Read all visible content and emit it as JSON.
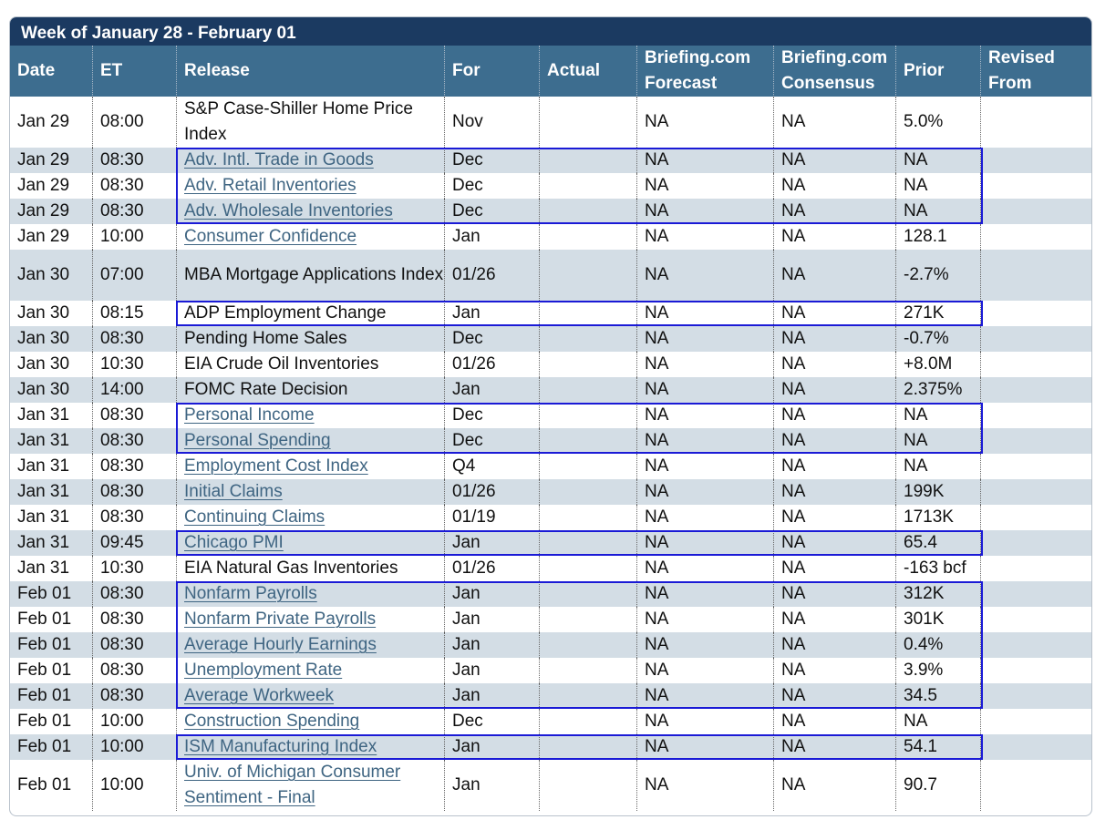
{
  "title": "Week of January 28 - February 01",
  "headers": [
    {
      "key": "date",
      "label": "Date"
    },
    {
      "key": "et",
      "label": "ET"
    },
    {
      "key": "release",
      "label": "Release"
    },
    {
      "key": "for",
      "label": "For"
    },
    {
      "key": "actual",
      "label": "Actual"
    },
    {
      "key": "forecast",
      "label": "Briefing.com Forecast"
    },
    {
      "key": "consensus",
      "label": "Briefing.com Consensus"
    },
    {
      "key": "prior",
      "label": "Prior"
    },
    {
      "key": "revised",
      "label": "Revised From"
    }
  ],
  "rows": [
    {
      "date": "Jan 29",
      "et": "08:00",
      "release": "S&P Case-Shiller Home Price Index",
      "link": false,
      "for": "Nov",
      "actual": "",
      "forecast": "NA",
      "consensus": "NA",
      "prior": "5.0%",
      "revised": ""
    },
    {
      "date": "Jan 29",
      "et": "08:30",
      "release": "Adv. Intl. Trade in Goods",
      "link": true,
      "for": "Dec",
      "actual": "",
      "forecast": "NA",
      "consensus": "NA",
      "prior": "NA",
      "revised": ""
    },
    {
      "date": "Jan 29",
      "et": "08:30",
      "release": "Adv. Retail Inventories",
      "link": true,
      "for": "Dec",
      "actual": "",
      "forecast": "NA",
      "consensus": "NA",
      "prior": "NA",
      "revised": ""
    },
    {
      "date": "Jan 29",
      "et": "08:30",
      "release": "Adv. Wholesale Inventories",
      "link": true,
      "for": "Dec",
      "actual": "",
      "forecast": "NA",
      "consensus": "NA",
      "prior": "NA",
      "revised": ""
    },
    {
      "date": "Jan 29",
      "et": "10:00",
      "release": "Consumer Confidence",
      "link": true,
      "for": "Jan",
      "actual": "",
      "forecast": "NA",
      "consensus": "NA",
      "prior": "128.1",
      "revised": ""
    },
    {
      "date": "Jan 30",
      "et": "07:00",
      "release": "MBA Mortgage Applications Index",
      "link": false,
      "for": "01/26",
      "actual": "",
      "forecast": "NA",
      "consensus": "NA",
      "prior": "-2.7%",
      "revised": ""
    },
    {
      "date": "Jan 30",
      "et": "08:15",
      "release": "ADP Employment Change",
      "link": false,
      "for": "Jan",
      "actual": "",
      "forecast": "NA",
      "consensus": "NA",
      "prior": "271K",
      "revised": ""
    },
    {
      "date": "Jan 30",
      "et": "08:30",
      "release": "Pending Home Sales",
      "link": false,
      "for": "Dec",
      "actual": "",
      "forecast": "NA",
      "consensus": "NA",
      "prior": "-0.7%",
      "revised": ""
    },
    {
      "date": "Jan 30",
      "et": "10:30",
      "release": "EIA Crude Oil Inventories",
      "link": false,
      "for": "01/26",
      "actual": "",
      "forecast": "NA",
      "consensus": "NA",
      "prior": "+8.0M",
      "revised": ""
    },
    {
      "date": "Jan 30",
      "et": "14:00",
      "release": "FOMC Rate Decision",
      "link": false,
      "for": "Jan",
      "actual": "",
      "forecast": "NA",
      "consensus": "NA",
      "prior": "2.375%",
      "revised": ""
    },
    {
      "date": "Jan 31",
      "et": "08:30",
      "release": "Personal Income",
      "link": true,
      "for": "Dec",
      "actual": "",
      "forecast": "NA",
      "consensus": "NA",
      "prior": "NA",
      "revised": ""
    },
    {
      "date": "Jan 31",
      "et": "08:30",
      "release": "Personal Spending",
      "link": true,
      "for": "Dec",
      "actual": "",
      "forecast": "NA",
      "consensus": "NA",
      "prior": "NA",
      "revised": ""
    },
    {
      "date": "Jan 31",
      "et": "08:30",
      "release": "Employment Cost Index",
      "link": true,
      "for": "Q4",
      "actual": "",
      "forecast": "NA",
      "consensus": "NA",
      "prior": "NA",
      "revised": ""
    },
    {
      "date": "Jan 31",
      "et": "08:30",
      "release": "Initial Claims",
      "link": true,
      "for": "01/26",
      "actual": "",
      "forecast": "NA",
      "consensus": "NA",
      "prior": "199K",
      "revised": ""
    },
    {
      "date": "Jan 31",
      "et": "08:30",
      "release": "Continuing Claims",
      "link": true,
      "for": "01/19",
      "actual": "",
      "forecast": "NA",
      "consensus": "NA",
      "prior": "1713K",
      "revised": ""
    },
    {
      "date": "Jan 31",
      "et": "09:45",
      "release": "Chicago PMI",
      "link": true,
      "for": "Jan",
      "actual": "",
      "forecast": "NA",
      "consensus": "NA",
      "prior": "65.4",
      "revised": ""
    },
    {
      "date": "Jan 31",
      "et": "10:30",
      "release": "EIA Natural Gas Inventories",
      "link": false,
      "for": "01/26",
      "actual": "",
      "forecast": "NA",
      "consensus": "NA",
      "prior": "-163 bcf",
      "revised": ""
    },
    {
      "date": "Feb 01",
      "et": "08:30",
      "release": "Nonfarm Payrolls",
      "link": true,
      "for": "Jan",
      "actual": "",
      "forecast": "NA",
      "consensus": "NA",
      "prior": "312K",
      "revised": ""
    },
    {
      "date": "Feb 01",
      "et": "08:30",
      "release": "Nonfarm Private Payrolls",
      "link": true,
      "for": "Jan",
      "actual": "",
      "forecast": "NA",
      "consensus": "NA",
      "prior": "301K",
      "revised": ""
    },
    {
      "date": "Feb 01",
      "et": "08:30",
      "release": "Average Hourly Earnings",
      "link": true,
      "for": "Jan",
      "actual": "",
      "forecast": "NA",
      "consensus": "NA",
      "prior": "0.4%",
      "revised": ""
    },
    {
      "date": "Feb 01",
      "et": "08:30",
      "release": "Unemployment Rate",
      "link": true,
      "for": "Jan",
      "actual": "",
      "forecast": "NA",
      "consensus": "NA",
      "prior": "3.9%",
      "revised": ""
    },
    {
      "date": "Feb 01",
      "et": "08:30",
      "release": "Average Workweek",
      "link": true,
      "for": "Jan",
      "actual": "",
      "forecast": "NA",
      "consensus": "NA",
      "prior": "34.5",
      "revised": ""
    },
    {
      "date": "Feb 01",
      "et": "10:00",
      "release": "Construction Spending",
      "link": true,
      "for": "Dec",
      "actual": "",
      "forecast": "NA",
      "consensus": "NA",
      "prior": "NA",
      "revised": ""
    },
    {
      "date": "Feb 01",
      "et": "10:00",
      "release": "ISM Manufacturing Index",
      "link": true,
      "for": "Jan",
      "actual": "",
      "forecast": "NA",
      "consensus": "NA",
      "prior": "54.1",
      "revised": ""
    },
    {
      "date": "Feb 01",
      "et": "10:00",
      "release": "Univ. of Michigan Consumer Sentiment - Final",
      "link": true,
      "for": "Jan",
      "actual": "",
      "forecast": "NA",
      "consensus": "NA",
      "prior": "90.7",
      "revised": ""
    }
  ],
  "highlight_groups": [
    [
      1,
      3
    ],
    [
      6,
      6
    ],
    [
      10,
      11
    ],
    [
      15,
      15
    ],
    [
      17,
      21
    ],
    [
      23,
      23
    ]
  ],
  "colors": {
    "title_bar": "#1b3a61",
    "header": "#3d6d8f",
    "alt_row": "#d3dde5",
    "link": "#3f6582",
    "highlight_border": "#1a1ad6"
  }
}
